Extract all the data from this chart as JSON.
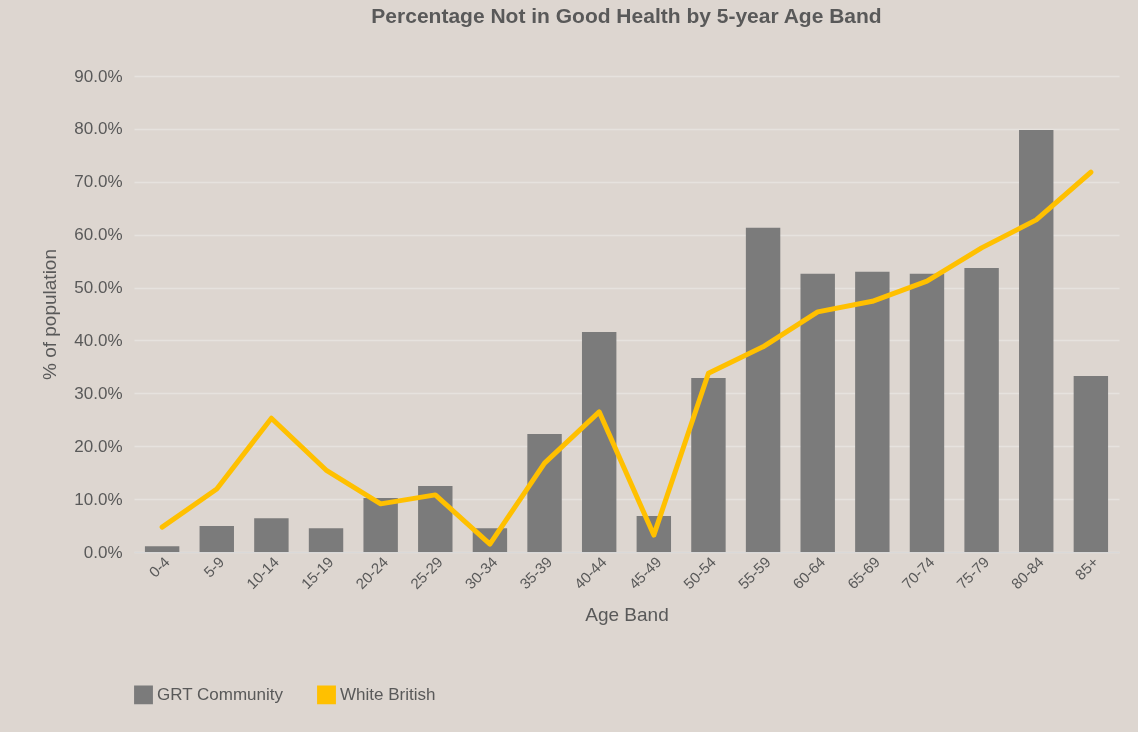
{
  "chart_data": {
    "type": "bar",
    "title": "Percentage Not in Good Health by 5-year Age Band",
    "xlabel": "Age Band",
    "ylabel": "% of population",
    "categories": [
      "0-4",
      "5-9",
      "10-14",
      "15-19",
      "20-24",
      "25-29",
      "30-34",
      "35-39",
      "40-44",
      "45-49",
      "50-54",
      "55-59",
      "60-64",
      "65-69",
      "70-74",
      "75-79",
      "80-84",
      "85+"
    ],
    "series": [
      {
        "name": "GRT Community",
        "color": "#7b7b7b",
        "values": [
          1.1,
          4.9,
          6.4,
          4.5,
          10.2,
          12.5,
          4.5,
          22.3,
          41.6,
          6.8,
          32.9,
          61.3,
          52.6,
          53.0,
          52.6,
          53.7,
          79.8,
          33.3
        ]
      },
      {
        "name": "White British",
        "type": "line",
        "color": "#ffc000",
        "values": [
          4.7,
          11.9,
          25.3,
          15.5,
          9.1,
          10.8,
          1.5,
          16.8,
          26.5,
          3.2,
          33.8,
          38.8,
          45.4,
          47.4,
          51.2,
          57.5,
          62.8,
          71.8
        ]
      }
    ],
    "ylim": [
      0,
      90
    ],
    "yticks": [
      {
        "value": 0,
        "label": "0.0%"
      },
      {
        "value": 10,
        "label": "10.0%"
      },
      {
        "value": 20,
        "label": "20.0%"
      },
      {
        "value": 30,
        "label": "30.0%"
      },
      {
        "value": 40,
        "label": "40.0%"
      },
      {
        "value": 50,
        "label": "50.0%"
      },
      {
        "value": 60,
        "label": "60.0%"
      },
      {
        "value": 70,
        "label": "70.0%"
      },
      {
        "value": 80,
        "label": "80.0%"
      },
      {
        "value": 90,
        "label": "90.0%"
      }
    ],
    "grid": "y",
    "legend": "bottom",
    "line_style": "solid"
  }
}
